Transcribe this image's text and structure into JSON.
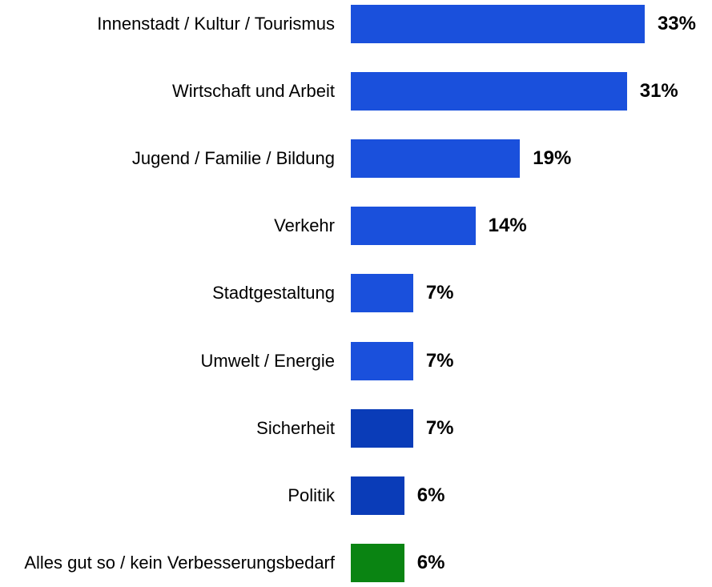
{
  "chart_data": {
    "type": "bar",
    "orientation": "horizontal",
    "categories": [
      "Innenstadt / Kultur / Tourismus",
      "Wirtschaft und Arbeit",
      "Jugend / Familie / Bildung",
      "Verkehr",
      "Stadtgestaltung",
      "Umwelt / Energie",
      "Sicherheit",
      "Politik",
      "Alles gut so / kein Verbesserungsbedarf"
    ],
    "values": [
      33,
      31,
      19,
      14,
      7,
      7,
      7,
      6,
      6
    ],
    "value_labels": [
      "33%",
      "31%",
      "19%",
      "14%",
      "7%",
      "7%",
      "7%",
      "6%",
      "6%"
    ],
    "colors": [
      "#1a50dc",
      "#1a50dc",
      "#1a50dc",
      "#1a50dc",
      "#1a50dc",
      "#1a50dc",
      "#0a3cb8",
      "#0a3cb8",
      "#0a8412"
    ]
  }
}
